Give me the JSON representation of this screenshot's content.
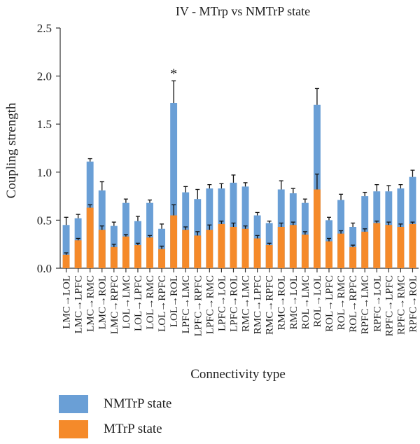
{
  "chart_data": {
    "type": "bar",
    "stacked": true,
    "title": "IV - MTrp vs NMTrP state",
    "xlabel": "Connectivity type",
    "ylabel": "Coupling strength",
    "ylim": [
      0,
      2.5
    ],
    "yticks": [
      "0.0",
      "0.5",
      "1.0",
      "1.5",
      "2.0",
      "2.5"
    ],
    "grid": false,
    "legend_position": "bottom-left",
    "categories": [
      "LMC→LOL",
      "LMC→LPFC",
      "LMC→RMC",
      "LMC→ROL",
      "LMC→RPFC",
      "LOL→LMC",
      "LOL→LPFC",
      "LOL→RMC",
      "LOL→RPFC",
      "LOL→ROL",
      "LPFC→LMC",
      "LPFC→RPFC",
      "LPFC→RMC",
      "LPFC→LOL",
      "LPFC→ROL",
      "RMC→LMC",
      "RMC→LPFC",
      "RMC→RPFC",
      "RMC→ROL",
      "RMC→LOL",
      "ROL→LMC",
      "ROL→LOL",
      "ROL→LPFC",
      "ROL→RMC",
      "ROL→RPFC",
      "RPFC→LMC",
      "RPFC→LOL",
      "RPFC→LPFC",
      "RPFC→RMC",
      "RPFC→ROL"
    ],
    "series": [
      {
        "name": "NMTrP state",
        "color": "#6a9fd6",
        "values": [
          0.45,
          0.52,
          1.11,
          0.81,
          0.44,
          0.68,
          0.49,
          0.68,
          0.41,
          1.72,
          0.79,
          0.72,
          0.83,
          0.83,
          0.89,
          0.85,
          0.55,
          0.47,
          0.82,
          0.78,
          0.68,
          1.7,
          0.5,
          0.71,
          0.43,
          0.75,
          0.8,
          0.8,
          0.83,
          0.95
        ],
        "errors": [
          0.08,
          0.04,
          0.03,
          0.09,
          0.04,
          0.04,
          0.05,
          0.03,
          0.05,
          0.23,
          0.06,
          0.1,
          0.04,
          0.05,
          0.08,
          0.04,
          0.03,
          0.02,
          0.09,
          0.05,
          0.04,
          0.17,
          0.03,
          0.06,
          0.04,
          0.04,
          0.07,
          0.06,
          0.04,
          0.07
        ]
      },
      {
        "name": "MTrP state",
        "color": "#f58a2a",
        "values": [
          0.14,
          0.29,
          0.63,
          0.4,
          0.22,
          0.33,
          0.24,
          0.32,
          0.2,
          0.55,
          0.4,
          0.34,
          0.4,
          0.46,
          0.43,
          0.41,
          0.31,
          0.24,
          0.43,
          0.45,
          0.35,
          0.82,
          0.28,
          0.36,
          0.22,
          0.38,
          0.47,
          0.45,
          0.43,
          0.46
        ],
        "errors": [
          0.02,
          0.02,
          0.03,
          0.04,
          0.03,
          0.02,
          0.02,
          0.02,
          0.03,
          0.11,
          0.03,
          0.04,
          0.05,
          0.03,
          0.04,
          0.03,
          0.03,
          0.02,
          0.04,
          0.03,
          0.03,
          0.16,
          0.03,
          0.03,
          0.02,
          0.03,
          0.02,
          0.03,
          0.03,
          0.02
        ]
      }
    ],
    "annotations": [
      {
        "text": "*",
        "category": "LOL→ROL"
      }
    ]
  }
}
